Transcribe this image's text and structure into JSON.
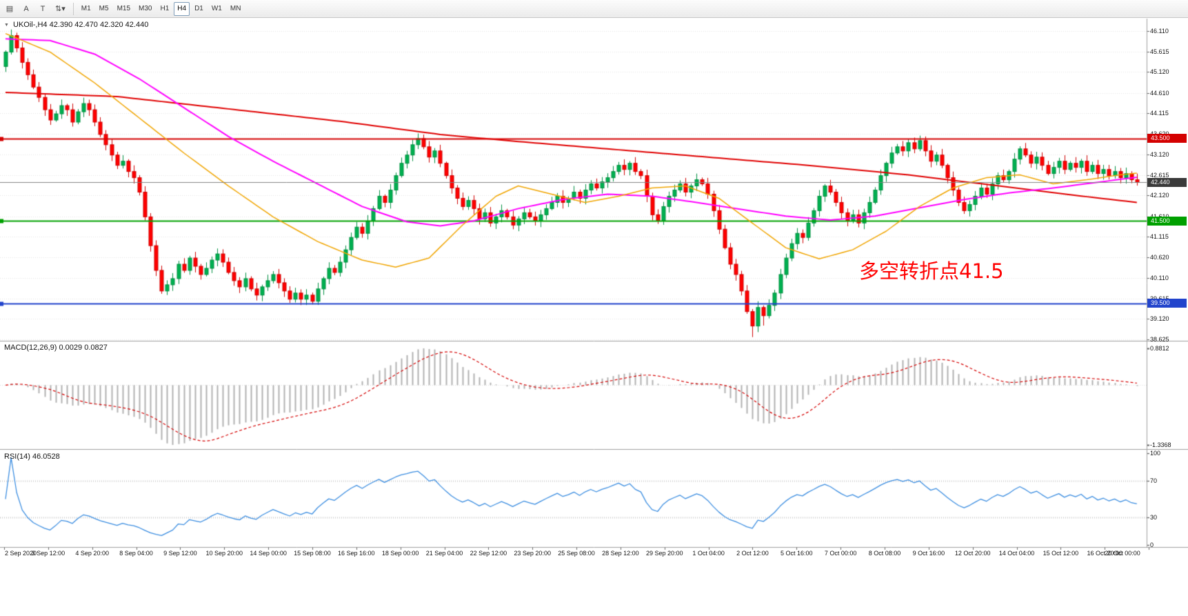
{
  "toolbar": {
    "left_buttons": [
      {
        "name": "window-menu-icon",
        "glyph": "▤"
      },
      {
        "name": "cursor-tool-a",
        "glyph": "A"
      },
      {
        "name": "text-tool",
        "glyph": "T"
      },
      {
        "name": "indicators-dropdown",
        "glyph": "⇅",
        "caret": "▾"
      }
    ],
    "timeframes": [
      {
        "label": "M1"
      },
      {
        "label": "M5"
      },
      {
        "label": "M15"
      },
      {
        "label": "M30"
      },
      {
        "label": "H1"
      },
      {
        "label": "H4",
        "active": true
      },
      {
        "label": "D1"
      },
      {
        "label": "W1"
      },
      {
        "label": "MN"
      }
    ]
  },
  "chart_data": {
    "type": "candlestick",
    "title": {
      "collapse_icon": "▼",
      "symbol_period": "UKOil-,H4",
      "ohlc": "42.390 42.470 42.320 42.440"
    },
    "annotation": {
      "text": "多空转折点41.5",
      "color": "#ff0000"
    },
    "price_axis": {
      "range": [
        38.625,
        46.11
      ],
      "labels": [
        "46.110",
        "45.615",
        "45.120",
        "44.610",
        "44.115",
        "43.620",
        "43.120",
        "42.615",
        "42.120",
        "41.610",
        "41.115",
        "40.620",
        "40.110",
        "39.615",
        "39.120",
        "38.625"
      ]
    },
    "levels": [
      {
        "value": 43.5,
        "label": "43.500",
        "color": "#d40000"
      },
      {
        "value": 41.5,
        "label": "41.500",
        "color": "#00a000"
      },
      {
        "value": 39.5,
        "label": "39.500",
        "color": "#2244cc"
      }
    ],
    "current_price": {
      "value": 42.44,
      "label": "42.440",
      "color": "#3a3a3a"
    },
    "candles": {
      "first_open": 45.25,
      "closes": [
        45.6,
        46.0,
        45.7,
        45.35,
        45.05,
        44.75,
        44.5,
        44.2,
        43.95,
        44.1,
        44.3,
        44.2,
        43.9,
        44.15,
        44.35,
        44.2,
        43.9,
        43.6,
        43.35,
        43.1,
        42.85,
        42.95,
        42.7,
        42.55,
        42.2,
        41.6,
        40.9,
        40.3,
        39.8,
        39.95,
        40.1,
        40.45,
        40.3,
        40.6,
        40.4,
        40.2,
        40.35,
        40.55,
        40.7,
        40.5,
        40.25,
        40.05,
        39.9,
        40.1,
        39.85,
        39.7,
        39.9,
        40.05,
        40.2,
        40.0,
        39.8,
        39.6,
        39.75,
        39.6,
        39.7,
        39.55,
        39.85,
        40.1,
        40.35,
        40.25,
        40.5,
        40.8,
        41.1,
        41.35,
        41.2,
        41.5,
        41.8,
        42.1,
        41.95,
        42.25,
        42.6,
        42.9,
        43.1,
        43.35,
        43.5,
        43.3,
        43.05,
        43.2,
        42.9,
        42.6,
        42.3,
        42.05,
        41.85,
        42.0,
        41.8,
        41.55,
        41.7,
        41.45,
        41.6,
        41.75,
        41.6,
        41.4,
        41.55,
        41.7,
        41.6,
        41.5,
        41.65,
        41.8,
        41.95,
        42.1,
        41.95,
        42.05,
        42.2,
        42.05,
        42.25,
        42.4,
        42.3,
        42.45,
        42.55,
        42.7,
        42.85,
        42.75,
        42.9,
        42.7,
        42.6,
        42.1,
        41.65,
        41.5,
        41.85,
        42.1,
        42.25,
        42.4,
        42.2,
        42.35,
        42.5,
        42.4,
        42.15,
        41.75,
        41.3,
        40.85,
        40.45,
        40.2,
        39.8,
        39.3,
        38.95,
        39.4,
        39.2,
        39.45,
        39.75,
        40.2,
        40.6,
        40.95,
        41.2,
        41.1,
        41.45,
        41.75,
        42.1,
        42.35,
        42.2,
        41.95,
        41.7,
        41.5,
        41.65,
        41.45,
        41.7,
        41.95,
        42.25,
        42.6,
        42.9,
        43.15,
        43.3,
        43.2,
        43.4,
        43.25,
        43.45,
        43.2,
        42.95,
        43.1,
        42.85,
        42.55,
        42.25,
        41.95,
        41.75,
        41.9,
        42.1,
        42.3,
        42.15,
        42.4,
        42.6,
        42.5,
        42.7,
        43.0,
        43.25,
        43.1,
        42.9,
        43.05,
        42.85,
        42.65,
        42.8,
        42.95,
        42.75,
        42.9,
        42.8,
        42.95,
        42.7,
        42.85,
        42.65,
        42.75,
        42.6,
        42.7,
        42.55,
        42.65,
        42.5,
        42.44
      ]
    },
    "moving_averages": [
      {
        "name": "slow-ma",
        "color": "#e00000",
        "width": 2,
        "points": [
          [
            0,
            44.62
          ],
          [
            20,
            44.52
          ],
          [
            40,
            44.22
          ],
          [
            60,
            43.92
          ],
          [
            78,
            43.6
          ],
          [
            90,
            43.45
          ],
          [
            108,
            43.25
          ],
          [
            126,
            43.05
          ],
          [
            144,
            42.85
          ],
          [
            162,
            42.62
          ],
          [
            180,
            42.32
          ],
          [
            192,
            42.12
          ],
          [
            203,
            41.95
          ]
        ]
      },
      {
        "name": "mid-ma",
        "color": "#ff00ff",
        "width": 2,
        "points": [
          [
            0,
            45.92
          ],
          [
            8,
            45.88
          ],
          [
            16,
            45.55
          ],
          [
            24,
            44.95
          ],
          [
            32,
            44.25
          ],
          [
            40,
            43.55
          ],
          [
            48,
            42.95
          ],
          [
            56,
            42.4
          ],
          [
            64,
            41.85
          ],
          [
            72,
            41.48
          ],
          [
            78,
            41.38
          ],
          [
            84,
            41.5
          ],
          [
            92,
            41.8
          ],
          [
            100,
            42.02
          ],
          [
            108,
            42.15
          ],
          [
            116,
            42.1
          ],
          [
            124,
            41.95
          ],
          [
            132,
            41.78
          ],
          [
            140,
            41.62
          ],
          [
            148,
            41.52
          ],
          [
            156,
            41.62
          ],
          [
            164,
            41.82
          ],
          [
            172,
            42.02
          ],
          [
            180,
            42.18
          ],
          [
            188,
            42.3
          ],
          [
            196,
            42.44
          ],
          [
            203,
            42.56
          ]
        ]
      },
      {
        "name": "fast-ma",
        "color": "#f0a500",
        "width": 1.5,
        "points": [
          [
            0,
            46.05
          ],
          [
            8,
            45.6
          ],
          [
            16,
            44.85
          ],
          [
            24,
            44.0
          ],
          [
            32,
            43.15
          ],
          [
            40,
            42.35
          ],
          [
            48,
            41.6
          ],
          [
            56,
            41.0
          ],
          [
            64,
            40.55
          ],
          [
            70,
            40.38
          ],
          [
            76,
            40.6
          ],
          [
            82,
            41.4
          ],
          [
            88,
            42.1
          ],
          [
            92,
            42.35
          ],
          [
            98,
            42.15
          ],
          [
            104,
            41.95
          ],
          [
            110,
            42.1
          ],
          [
            116,
            42.3
          ],
          [
            122,
            42.35
          ],
          [
            128,
            42.05
          ],
          [
            134,
            41.45
          ],
          [
            140,
            40.85
          ],
          [
            146,
            40.58
          ],
          [
            152,
            40.8
          ],
          [
            158,
            41.25
          ],
          [
            164,
            41.85
          ],
          [
            170,
            42.3
          ],
          [
            176,
            42.55
          ],
          [
            182,
            42.62
          ],
          [
            188,
            42.4
          ],
          [
            194,
            42.5
          ],
          [
            200,
            42.62
          ],
          [
            203,
            42.66
          ]
        ]
      }
    ],
    "indicators": [
      {
        "type": "macd",
        "label": "MACD(12,26,9)",
        "value_main": "0.0029",
        "value_signal": "0.0827",
        "fast": 12,
        "slow": 26,
        "signal": 9,
        "axis_labels": [
          "0.8812",
          "-1.3368"
        ],
        "histogram_color": "#b2b2b2",
        "signal_color": "#d40000"
      },
      {
        "type": "rsi",
        "label": "RSI(14)",
        "value": "46.0528",
        "period": 14,
        "axis_labels": [
          "100",
          "70",
          "30",
          "0"
        ],
        "level_lines": [
          70,
          30
        ],
        "line_color": "#3b8de0"
      }
    ],
    "time_axis": {
      "labels": [
        "2 Sep 2020",
        "3 Sep 12:00",
        "4 Sep 20:00",
        "8 Sep 04:00",
        "9 Sep 12:00",
        "10 Sep 20:00",
        "14 Sep 00:00",
        "15 Sep 08:00",
        "16 Sep 16:00",
        "18 Sep 00:00",
        "21 Sep 04:00",
        "22 Sep 12:00",
        "23 Sep 20:00",
        "25 Sep 08:00",
        "28 Sep 12:00",
        "29 Sep 20:00",
        "1 Oct 04:00",
        "2 Oct 12:00",
        "5 Oct 16:00",
        "7 Oct 00:00",
        "8 Oct 08:00",
        "9 Oct 16:00",
        "12 Oct 20:00",
        "14 Oct 04:00",
        "15 Oct 12:00",
        "16 Oct 20:00",
        "20 Oct 00:00"
      ]
    },
    "colors": {
      "up": "#00b050",
      "up_border": "#008f40",
      "down": "#ff0000",
      "down_border": "#cf0000",
      "grid": "#e4e4e4",
      "separator": "#9f9f9f",
      "current_line": "#808080"
    }
  }
}
